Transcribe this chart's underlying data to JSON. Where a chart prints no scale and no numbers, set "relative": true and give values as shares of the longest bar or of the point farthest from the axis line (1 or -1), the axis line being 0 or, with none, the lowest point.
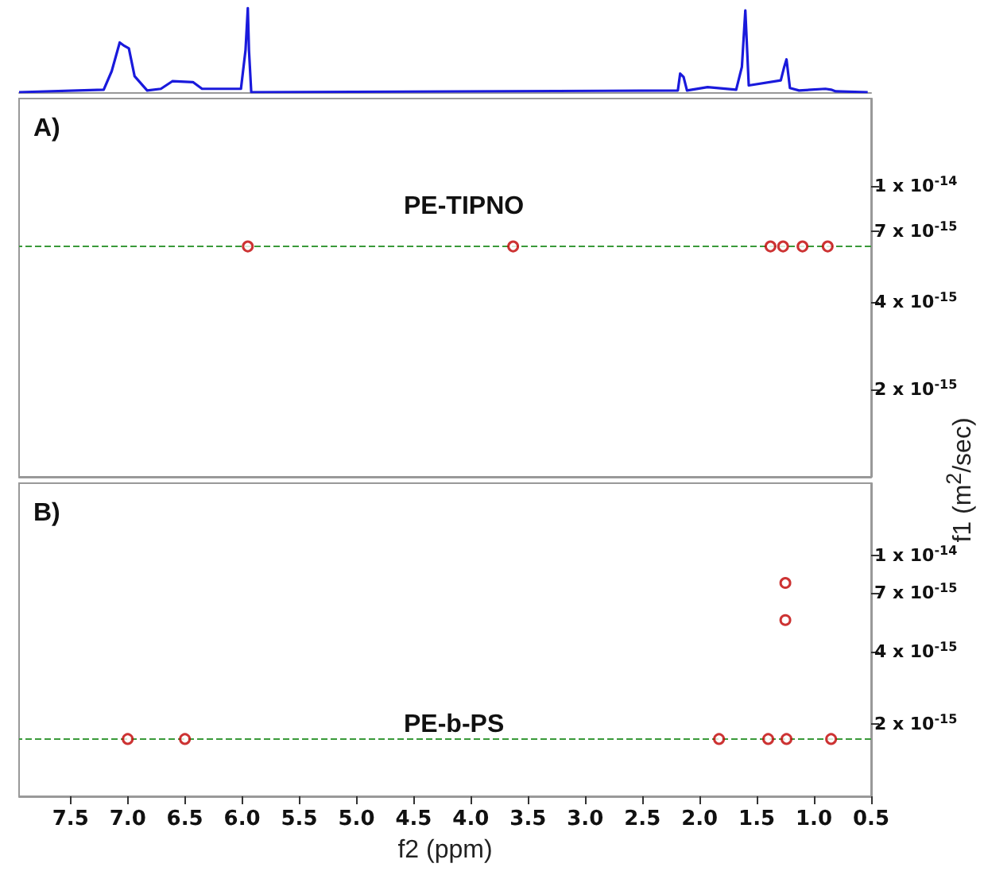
{
  "chart_data": [
    {
      "type": "line",
      "relative": true,
      "color": "#1a1adc",
      "xlim": [
        7.95,
        0.5
      ],
      "tick_labels": false,
      "grid": false,
      "marker": "none",
      "x": [
        7.95,
        7.21,
        7.14,
        7.07,
        7.03,
        6.99,
        6.94,
        6.83,
        6.71,
        6.61,
        6.43,
        6.35,
        6.01,
        5.97,
        5.95,
        5.94,
        5.92,
        2.19,
        2.17,
        2.14,
        2.11,
        1.93,
        1.68,
        1.63,
        1.6,
        1.57,
        1.29,
        1.26,
        1.24,
        1.21,
        1.13,
        0.9,
        0.85,
        0.81,
        0.53
      ],
      "values": [
        0,
        0.03,
        0.25,
        0.59,
        0.55,
        0.52,
        0.19,
        0.02,
        0.04,
        0.13,
        0.12,
        0.04,
        0.04,
        0.5,
        1.0,
        0.5,
        0,
        0.02,
        0.22,
        0.18,
        0.02,
        0.06,
        0.03,
        0.3,
        0.97,
        0.08,
        0.14,
        0.3,
        0.39,
        0.05,
        0.02,
        0.04,
        0.03,
        0.01,
        0
      ]
    },
    {
      "type": "scatter",
      "title": "A)",
      "ylabel": "f1 (m$^{2}$/sec)",
      "color": "#c00000",
      "marker": "circle",
      "log": "y",
      "grid": false,
      "tick_labels": "y",
      "xlim": [
        7.95,
        0.5
      ],
      "ylim": [
        1e-15,
        2e-14
      ],
      "yticks": [
        {
          "value": 2e-15,
          "label": "2 x 10$^{-15}$"
        },
        {
          "value": 4e-15,
          "label": "4 x 10$^{-15}$"
        },
        {
          "value": 7e-15,
          "label": "7 x 10$^{-15}$"
        },
        {
          "value": 1e-14,
          "label": "1 x 10$^{-14}$"
        }
      ],
      "x": [
        5.95,
        3.63,
        1.38,
        1.27,
        1.1,
        0.88
      ],
      "values": [
        6.2e-15,
        6.2e-15,
        6.2e-15,
        6.2e-15,
        6.2e-15,
        6.2e-15
      ],
      "ref_lines": [
        {
          "axis": "y",
          "value": 6.2e-15,
          "color": "#3a9a3a",
          "line_style": "dashed"
        }
      ],
      "annotations": [
        "PE-TIPNO"
      ]
    },
    {
      "type": "scatter",
      "title": "B)",
      "xlabel": "f2 (ppm)",
      "color": "#c00000",
      "marker": "circle",
      "log": "y",
      "grid": false,
      "xlim": [
        7.95,
        0.5
      ],
      "ylim": [
        1e-15,
        2e-14
      ],
      "xticks": [
        {
          "value": 7.5,
          "label": "7.5"
        },
        {
          "value": 7,
          "label": "7.0"
        },
        {
          "value": 6.5,
          "label": "6.5"
        },
        {
          "value": 6,
          "label": "6.0"
        },
        {
          "value": 5.5,
          "label": "5.5"
        },
        {
          "value": 5,
          "label": "5.0"
        },
        {
          "value": 4.5,
          "label": "4.5"
        },
        {
          "value": 4,
          "label": "4.0"
        },
        {
          "value": 3.5,
          "label": "3.5"
        },
        {
          "value": 3,
          "label": "3.0"
        },
        {
          "value": 2.5,
          "label": "2.5"
        },
        {
          "value": 2,
          "label": "2.0"
        },
        {
          "value": 1.5,
          "label": "1.5"
        },
        {
          "value": 1,
          "label": "1.0"
        },
        {
          "value": 0.5,
          "label": "0.5"
        }
      ],
      "yticks": [
        {
          "value": 2e-15,
          "label": "2 x 10$^{-15}$"
        },
        {
          "value": 4e-15,
          "label": "4 x 10$^{-15}$"
        },
        {
          "value": 7e-15,
          "label": "7 x 10$^{-15}$"
        },
        {
          "value": 1e-14,
          "label": "1 x 10$^{-14}$"
        }
      ],
      "x": [
        7.0,
        6.5,
        1.83,
        1.4,
        1.24,
        0.85,
        1.25,
        1.25
      ],
      "values": [
        1.73e-15,
        1.73e-15,
        1.73e-15,
        1.73e-15,
        1.73e-15,
        1.73e-15,
        7.7e-15,
        5.4e-15
      ],
      "ref_lines": [
        {
          "axis": "y",
          "value": 1.73e-15,
          "color": "#3a9a3a",
          "line_style": "dashed"
        }
      ],
      "annotations": [
        "PE-b-PS"
      ]
    }
  ]
}
